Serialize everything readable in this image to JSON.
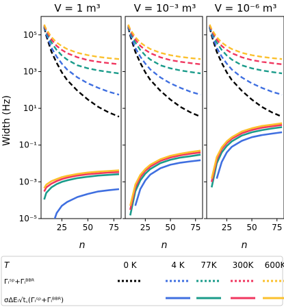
{
  "chart_data": {
    "type": "line",
    "ylabel": "Width (Hz)",
    "xlabel": "n",
    "yscale": "log",
    "ylim": [
      1e-05,
      1000000.0
    ],
    "xlim": [
      5,
      82
    ],
    "x_ticks": [
      25,
      50,
      75
    ],
    "y_ticks": [
      {
        "value": 100000.0,
        "label": "10⁵"
      },
      {
        "value": 1000.0,
        "label": "10³"
      },
      {
        "value": 10.0,
        "label": "10¹"
      },
      {
        "value": 0.1,
        "label": "10⁻¹"
      },
      {
        "value": 0.001,
        "label": "10⁻³"
      },
      {
        "value": 1e-05,
        "label": "10⁻⁵"
      }
    ],
    "n": [
      8,
      10,
      15,
      20,
      25,
      30,
      40,
      50,
      60,
      70,
      80
    ],
    "legend": {
      "header": "T",
      "row1_label": "Γᵢˢᵖ+Γᵢᴮᴮᴿ",
      "row2_label": "σΔEᵢ√t꜀(Γᵢˢᵖ+Γᵢᴮᴮᴿ)",
      "temperatures": [
        "0 K",
        "4 K",
        "77K",
        "300K",
        "600K"
      ]
    },
    "temperature_colors": {
      "0 K": "#000000",
      "4 K": "#3f6fe0",
      "77K": "#1a9b8a",
      "300K": "#f0365f",
      "600K": "#fbc02d"
    },
    "panels": [
      {
        "title": "V = 1 m³",
        "linewidths": [
          {
            "temp": "0 K",
            "values": [
              250000,
              90000,
              12000,
              3000,
              900,
              350,
              90,
              30,
              12,
              6,
              3.5
            ]
          },
          {
            "temp": "4 K",
            "values": [
              280000,
              110000,
              20000,
              6500,
              2700,
              1300,
              480,
              230,
              130,
              80,
              55
            ]
          },
          {
            "temp": "77K",
            "values": [
              300000,
              140000,
              38000,
              15000,
              7500,
              4500,
              2200,
              1500,
              1150,
              950,
              800
            ]
          },
          {
            "temp": "300K",
            "values": [
              330000,
              170000,
              55000,
              25000,
              15000,
              10000,
              6000,
              4200,
              3400,
              2900,
              2500
            ]
          },
          {
            "temp": "600K",
            "values": [
              360000,
              200000,
              75000,
              38000,
              24000,
              17000,
              10500,
              7800,
              6300,
              5400,
              4800
            ]
          }
        ],
        "sigma": [
          {
            "temp": "4 K",
            "values": [
              null,
              null,
              3e-06,
              2e-05,
              5e-05,
              8e-05,
              0.00015,
              0.00022,
              0.0003,
              0.00035,
              0.0004
            ]
          },
          {
            "temp": "77K",
            "values": [
              0.00011,
              0.00025,
              0.0005,
              0.00075,
              0.001,
              0.0012,
              0.0016,
              0.0019,
              0.0022,
              0.0024,
              0.0026
            ]
          },
          {
            "temp": "300K",
            "values": [
              0.0003,
              0.0005,
              0.0008,
              0.0011,
              0.0014,
              0.0017,
              0.0022,
              0.0026,
              0.0029,
              0.0032,
              0.0034
            ]
          },
          {
            "temp": "600K",
            "values": [
              0.00045,
              0.0007,
              0.0011,
              0.0014,
              0.0018,
              0.0021,
              0.0027,
              0.0032,
              0.0036,
              0.0039,
              0.0042
            ]
          }
        ]
      },
      {
        "title": "V = 10⁻³ m³",
        "linewidths": [
          {
            "temp": "0 K",
            "values": [
              250000,
              90000,
              12000,
              3000,
              900,
              350,
              90,
              30,
              12,
              6,
              3.5
            ]
          },
          {
            "temp": "4 K",
            "values": [
              280000,
              110000,
              20000,
              6500,
              2700,
              1300,
              480,
              230,
              130,
              80,
              55
            ]
          },
          {
            "temp": "77K",
            "values": [
              300000,
              140000,
              38000,
              15000,
              7500,
              4500,
              2200,
              1500,
              1150,
              950,
              800
            ]
          },
          {
            "temp": "300K",
            "values": [
              330000,
              170000,
              55000,
              25000,
              15000,
              10000,
              6000,
              4200,
              3400,
              2900,
              2500
            ]
          },
          {
            "temp": "600K",
            "values": [
              360000,
              200000,
              75000,
              38000,
              24000,
              17000,
              10500,
              7800,
              6300,
              5400,
              4800
            ]
          }
        ],
        "sigma": [
          {
            "temp": "4 K",
            "values": [
              null,
              null,
              5e-05,
              0.0004,
              0.0012,
              0.0025,
              0.0055,
              0.0085,
              0.011,
              0.013,
              0.015
            ]
          },
          {
            "temp": "77K",
            "values": [
              null,
              1.5e-05,
              0.0003,
              0.0012,
              0.0028,
              0.005,
              0.0105,
              0.016,
              0.021,
              0.025,
              0.03
            ]
          },
          {
            "temp": "300K",
            "values": [
              null,
              3e-05,
              0.0005,
              0.0018,
              0.004,
              0.0068,
              0.014,
              0.021,
              0.028,
              0.034,
              0.04
            ]
          },
          {
            "temp": "600K",
            "values": [
              null,
              5e-05,
              0.0007,
              0.0024,
              0.005,
              0.0085,
              0.017,
              0.026,
              0.034,
              0.042,
              0.05
            ]
          }
        ]
      },
      {
        "title": "V = 10⁻⁶ m³",
        "linewidths": [
          {
            "temp": "0 K",
            "values": [
              250000,
              90000,
              12000,
              3000,
              900,
              350,
              90,
              30,
              12,
              6,
              3.5
            ]
          },
          {
            "temp": "4 K",
            "values": [
              280000,
              110000,
              20000,
              6500,
              2700,
              1300,
              480,
              230,
              130,
              80,
              55
            ]
          },
          {
            "temp": "77K",
            "values": [
              300000,
              140000,
              38000,
              15000,
              7500,
              4500,
              2200,
              1500,
              1150,
              950,
              800
            ]
          },
          {
            "temp": "300K",
            "values": [
              330000,
              170000,
              55000,
              25000,
              15000,
              10000,
              6000,
              4200,
              3400,
              2900,
              2500
            ]
          },
          {
            "temp": "600K",
            "values": [
              360000,
              200000,
              75000,
              38000,
              24000,
              17000,
              10500,
              7800,
              6300,
              5400,
              4800
            ]
          }
        ],
        "sigma": [
          {
            "temp": "4 K",
            "values": [
              null,
              null,
              0.0015,
              0.012,
              0.04,
              0.08,
              0.17,
              0.27,
              0.35,
              0.42,
              0.5
            ]
          },
          {
            "temp": "77K",
            "values": [
              null,
              0.0005,
              0.01,
              0.04,
              0.09,
              0.16,
              0.33,
              0.5,
              0.65,
              0.8,
              0.95
            ]
          },
          {
            "temp": "300K",
            "values": [
              null,
              0.001,
              0.016,
              0.06,
              0.13,
              0.22,
              0.44,
              0.66,
              0.88,
              1.05,
              1.25
            ]
          },
          {
            "temp": "600K",
            "values": [
              null,
              0.0015,
              0.022,
              0.075,
              0.16,
              0.27,
              0.55,
              0.82,
              1.1,
              1.3,
              1.55
            ]
          }
        ]
      }
    ]
  }
}
